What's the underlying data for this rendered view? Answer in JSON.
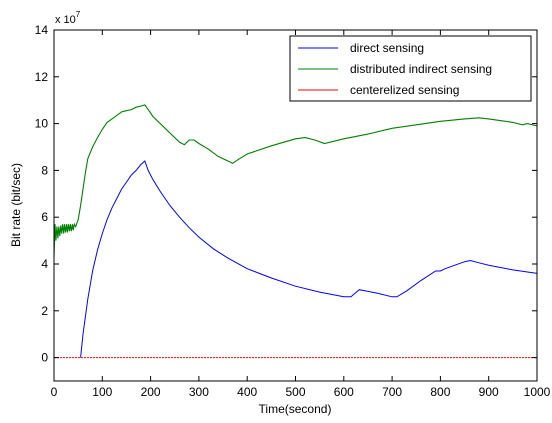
{
  "chart_data": {
    "type": "line",
    "title": "",
    "xlabel": "Time(second)",
    "ylabel": "Bit rate (bit/sec)",
    "y_scale_label": "x 10",
    "y_scale_exponent": "7",
    "y_multiplier": 10000000,
    "xlim": [
      0,
      1000
    ],
    "ylim": [
      -1,
      14
    ],
    "x_ticks": [
      0,
      100,
      200,
      300,
      400,
      500,
      600,
      700,
      800,
      900,
      1000
    ],
    "y_ticks": [
      0,
      2,
      4,
      6,
      8,
      10,
      12,
      14
    ],
    "grid": false,
    "legend_position": "top-right",
    "series": [
      {
        "name": "direct sensing",
        "color": "#0000ff",
        "x": [
          55,
          60,
          70,
          80,
          90,
          100,
          110,
          120,
          130,
          140,
          150,
          160,
          170,
          180,
          188,
          195,
          205,
          220,
          240,
          260,
          280,
          300,
          330,
          360,
          400,
          450,
          500,
          550,
          600,
          615,
          625,
          632,
          645,
          670,
          700,
          710,
          730,
          760,
          790,
          800,
          810,
          830,
          850,
          862,
          880,
          900,
          950,
          1000
        ],
        "y": [
          0,
          1.0,
          2.5,
          3.7,
          4.6,
          5.3,
          5.9,
          6.4,
          6.8,
          7.2,
          7.5,
          7.8,
          8.0,
          8.25,
          8.4,
          8.0,
          7.6,
          7.1,
          6.5,
          6.0,
          5.55,
          5.15,
          4.65,
          4.25,
          3.8,
          3.4,
          3.05,
          2.8,
          2.6,
          2.6,
          2.78,
          2.9,
          2.85,
          2.75,
          2.6,
          2.6,
          2.85,
          3.3,
          3.7,
          3.7,
          3.8,
          3.95,
          4.1,
          4.15,
          4.05,
          3.95,
          3.75,
          3.6
        ]
      },
      {
        "name": "distributed indirect sensing",
        "color": "#008000",
        "x": [
          0,
          2,
          4,
          6,
          8,
          10,
          12,
          14,
          16,
          18,
          20,
          22,
          24,
          26,
          28,
          30,
          32,
          34,
          36,
          38,
          40,
          42,
          45,
          50,
          55,
          60,
          65,
          70,
          80,
          90,
          100,
          110,
          120,
          130,
          140,
          150,
          160,
          170,
          180,
          188,
          195,
          205,
          220,
          240,
          260,
          270,
          280,
          290,
          300,
          320,
          340,
          360,
          370,
          380,
          400,
          450,
          500,
          520,
          540,
          560,
          600,
          650,
          700,
          750,
          800,
          850,
          880,
          900,
          950,
          970,
          980,
          1000
        ],
        "y": [
          4.3,
          5.7,
          5.0,
          5.6,
          5.1,
          5.6,
          5.2,
          5.65,
          5.3,
          5.7,
          5.3,
          5.7,
          5.35,
          5.7,
          5.35,
          5.7,
          5.4,
          5.7,
          5.4,
          5.7,
          5.45,
          5.7,
          5.6,
          5.9,
          6.5,
          7.2,
          7.9,
          8.5,
          9.0,
          9.4,
          9.75,
          10.05,
          10.2,
          10.35,
          10.5,
          10.55,
          10.6,
          10.7,
          10.75,
          10.8,
          10.6,
          10.3,
          10.0,
          9.6,
          9.2,
          9.1,
          9.3,
          9.3,
          9.15,
          8.9,
          8.6,
          8.4,
          8.3,
          8.45,
          8.7,
          9.05,
          9.35,
          9.4,
          9.3,
          9.15,
          9.35,
          9.55,
          9.8,
          9.95,
          10.1,
          10.2,
          10.25,
          10.2,
          10.05,
          9.95,
          10.0,
          9.9
        ]
      },
      {
        "name": "centerelized sensing",
        "color": "#ff0000",
        "x": [
          0,
          1000
        ],
        "y": [
          0,
          0
        ]
      }
    ]
  }
}
